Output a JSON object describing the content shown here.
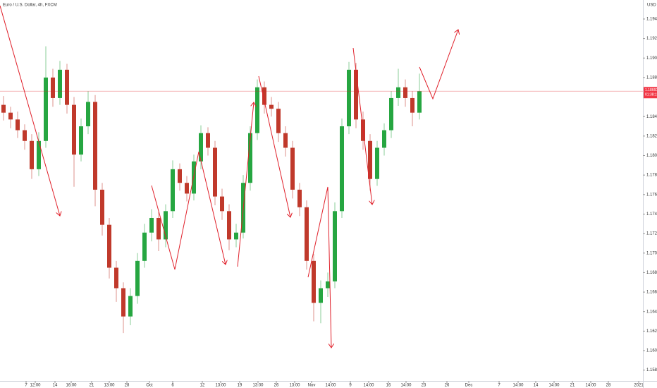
{
  "chart_data": {
    "type": "candlestick",
    "title": "Euro / U.S. Dollar, 4h, FXCM",
    "currency": "USD",
    "up_color": "#26a641",
    "down_color": "#c0392b",
    "open": [
      1.1852,
      1.1844,
      1.1837,
      1.1826,
      1.1815,
      1.1786,
      1.1815,
      1.188,
      1.1859,
      1.1888,
      1.1852,
      1.1801,
      1.183,
      1.1855,
      1.1765,
      1.1729,
      1.1685,
      1.1664,
      1.1635,
      1.1656,
      1.1692,
      1.1721,
      1.1736,
      1.1714,
      1.1743,
      1.1786,
      1.1772,
      1.1761,
      1.1794,
      1.1823,
      1.1808,
      1.1758,
      1.1743,
      1.1714,
      1.1721,
      1.1772,
      1.1823,
      1.187,
      1.1852,
      1.1848,
      1.1823,
      1.1808,
      1.1765,
      1.1747,
      1.1692,
      1.1649,
      1.1664,
      1.1671,
      1.1743,
      1.183,
      1.1888,
      1.1837,
      1.1815,
      1.1776,
      1.1808,
      1.1826,
      1.1859,
      1.187,
      1.1859,
      1.1844
    ],
    "high": [
      1.1861,
      1.185,
      1.1845,
      1.1832,
      1.1822,
      1.1824,
      1.1912,
      1.1889,
      1.1897,
      1.1894,
      1.186,
      1.1838,
      1.1866,
      1.1862,
      1.1772,
      1.1736,
      1.1692,
      1.167,
      1.1664,
      1.17,
      1.173,
      1.1745,
      1.1742,
      1.175,
      1.1795,
      1.1792,
      1.1779,
      1.1801,
      1.1831,
      1.1829,
      1.1815,
      1.1766,
      1.175,
      1.173,
      1.178,
      1.183,
      1.1878,
      1.1876,
      1.186,
      1.1855,
      1.183,
      1.1815,
      1.1772,
      1.1754,
      1.1699,
      1.1672,
      1.168,
      1.1752,
      1.1838,
      1.1896,
      1.1895,
      1.1845,
      1.1822,
      1.1815,
      1.1833,
      1.1866,
      1.1889,
      1.1878,
      1.1866,
      1.1884
    ],
    "low": [
      1.1836,
      1.1828,
      1.1818,
      1.1806,
      1.1776,
      1.1779,
      1.1808,
      1.185,
      1.1852,
      1.1843,
      1.1768,
      1.1794,
      1.1822,
      1.1748,
      1.1718,
      1.1674,
      1.165,
      1.1618,
      1.1626,
      1.1648,
      1.1685,
      1.1712,
      1.1702,
      1.1706,
      1.1736,
      1.1764,
      1.1753,
      1.1754,
      1.1786,
      1.18,
      1.1749,
      1.1734,
      1.1703,
      1.1706,
      1.1715,
      1.1764,
      1.1816,
      1.1843,
      1.184,
      1.1814,
      1.1799,
      1.1756,
      1.1738,
      1.1683,
      1.163,
      1.1628,
      1.1655,
      1.1664,
      1.1736,
      1.1822,
      1.1828,
      1.1806,
      1.1764,
      1.1769,
      1.18,
      1.1818,
      1.1851,
      1.185,
      1.183,
      1.1837
    ],
    "close": [
      1.1844,
      1.1837,
      1.1826,
      1.1815,
      1.1786,
      1.1815,
      1.188,
      1.1859,
      1.1888,
      1.1852,
      1.1801,
      1.183,
      1.1855,
      1.1765,
      1.1729,
      1.1685,
      1.1664,
      1.1635,
      1.1656,
      1.1692,
      1.1721,
      1.1736,
      1.1714,
      1.1743,
      1.1786,
      1.1772,
      1.1761,
      1.1794,
      1.1823,
      1.1808,
      1.1758,
      1.1743,
      1.1714,
      1.1721,
      1.1772,
      1.1823,
      1.187,
      1.1852,
      1.1848,
      1.1823,
      1.1808,
      1.1765,
      1.1747,
      1.1692,
      1.1649,
      1.1664,
      1.1671,
      1.1743,
      1.183,
      1.1888,
      1.1837,
      1.1815,
      1.1776,
      1.1808,
      1.1826,
      1.1859,
      1.187,
      1.1859,
      1.1844,
      1.1866
    ],
    "current_price": {
      "value": 1.1866,
      "label": "1.18660"
    },
    "countdown": "01:38:19",
    "ylim": [
      1.15689,
      1.19595
    ],
    "yticks": [
      {
        "value": 1.194,
        "label": "1.19400"
      },
      {
        "value": 1.192,
        "label": "1.19200"
      },
      {
        "value": 1.19,
        "label": "1.19000"
      },
      {
        "value": 1.188,
        "label": "1.18800"
      },
      {
        "value": 1.184,
        "label": "1.18400"
      },
      {
        "value": 1.182,
        "label": "1.18200"
      },
      {
        "value": 1.18,
        "label": "1.18000"
      },
      {
        "value": 1.178,
        "label": "1.17800"
      },
      {
        "value": 1.176,
        "label": "1.17600"
      },
      {
        "value": 1.174,
        "label": "1.17400"
      },
      {
        "value": 1.172,
        "label": "1.17200"
      },
      {
        "value": 1.17,
        "label": "1.17000"
      },
      {
        "value": 1.168,
        "label": "1.16800"
      },
      {
        "value": 1.166,
        "label": "1.16600"
      },
      {
        "value": 1.164,
        "label": "1.16400"
      },
      {
        "value": 1.162,
        "label": "1.16200"
      },
      {
        "value": 1.16,
        "label": "1.16000"
      },
      {
        "value": 1.158,
        "label": "1.15800"
      }
    ],
    "xlim": [
      -0.5,
      90.7
    ],
    "xticks": [
      {
        "value": 3.2,
        "label": "7"
      },
      {
        "value": 4.5,
        "label": "12:00"
      },
      {
        "value": 7.3,
        "label": "14"
      },
      {
        "value": 9.6,
        "label": "16:00"
      },
      {
        "value": 12.5,
        "label": "21"
      },
      {
        "value": 15,
        "label": "13:00"
      },
      {
        "value": 17.5,
        "label": "28"
      },
      {
        "value": 20.7,
        "label": "Oct"
      },
      {
        "value": 24,
        "label": "6"
      },
      {
        "value": 28.2,
        "label": "12"
      },
      {
        "value": 30.8,
        "label": "13:00"
      },
      {
        "value": 33.5,
        "label": "19"
      },
      {
        "value": 36.1,
        "label": "13:00"
      },
      {
        "value": 38.7,
        "label": "26"
      },
      {
        "value": 41.3,
        "label": "13:00"
      },
      {
        "value": 43.7,
        "label": "Nov"
      },
      {
        "value": 46.4,
        "label": "14:00"
      },
      {
        "value": 49.2,
        "label": "9"
      },
      {
        "value": 51.8,
        "label": "14:00"
      },
      {
        "value": 54.6,
        "label": "16"
      },
      {
        "value": 57.1,
        "label": "14:00"
      },
      {
        "value": 59.6,
        "label": "23"
      },
      {
        "value": 62.9,
        "label": "26"
      },
      {
        "value": 66,
        "label": "Dec"
      },
      {
        "value": 70.3,
        "label": "7"
      },
      {
        "value": 73,
        "label": "14:00"
      },
      {
        "value": 75.5,
        "label": "14"
      },
      {
        "value": 78.1,
        "label": "14:00"
      },
      {
        "value": 80.7,
        "label": "21"
      },
      {
        "value": 83.3,
        "label": "14:00"
      },
      {
        "value": 85.8,
        "label": "28"
      },
      {
        "value": 90.1,
        "label": "2021"
      }
    ]
  }
}
